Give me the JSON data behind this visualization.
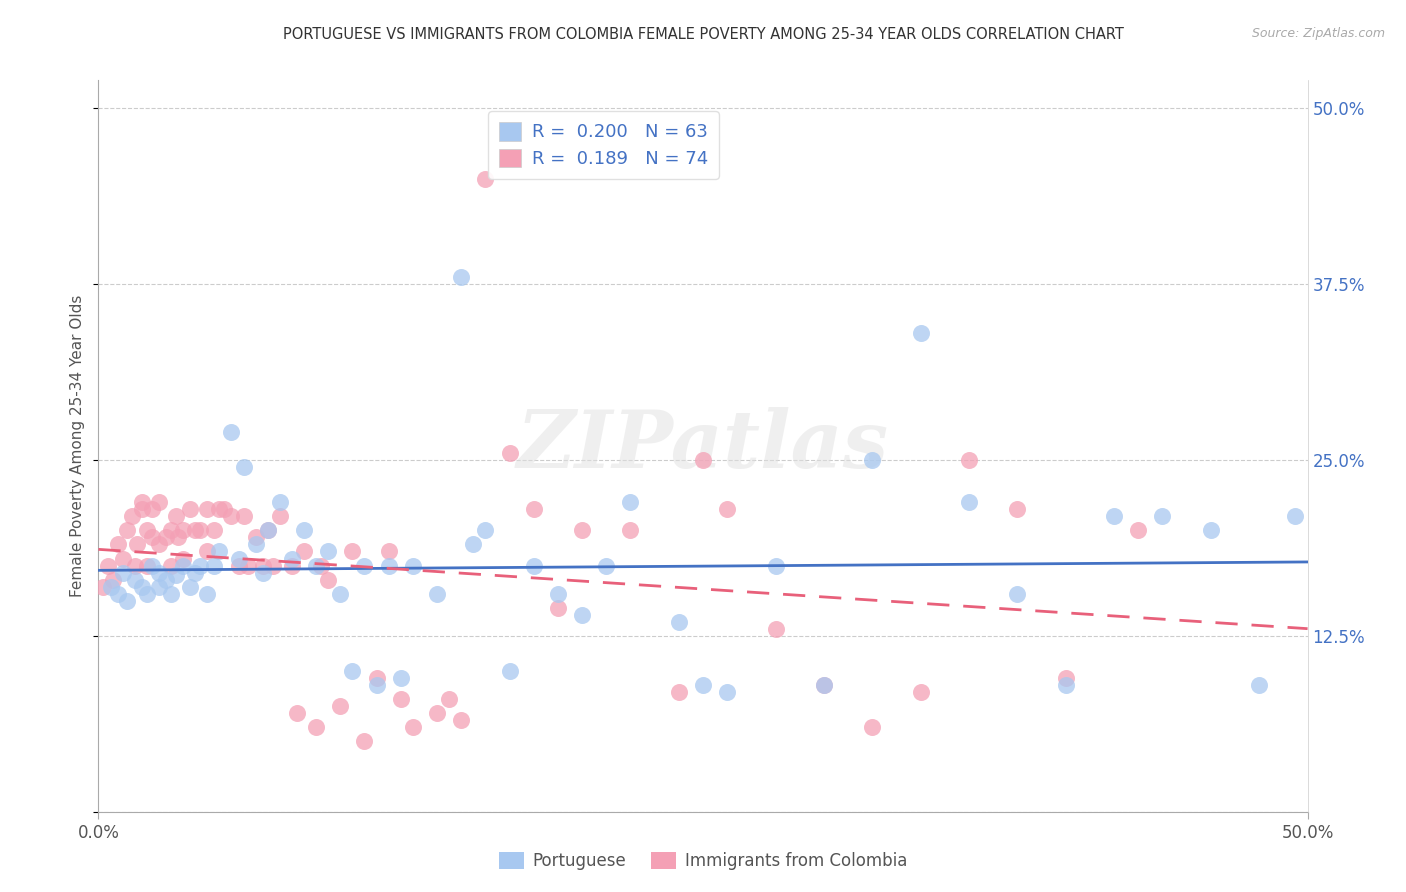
{
  "title": "PORTUGUESE VS IMMIGRANTS FROM COLOMBIA FEMALE POVERTY AMONG 25-34 YEAR OLDS CORRELATION CHART",
  "source": "Source: ZipAtlas.com",
  "ylabel": "Female Poverty Among 25-34 Year Olds",
  "xlim": [
    0.0,
    0.5
  ],
  "ylim": [
    0.0,
    0.52
  ],
  "yticks": [
    0.0,
    0.125,
    0.25,
    0.375,
    0.5
  ],
  "ytick_labels": [
    "",
    "12.5%",
    "25.0%",
    "37.5%",
    "50.0%"
  ],
  "blue_color": "#a8c8f0",
  "pink_color": "#f4a0b5",
  "blue_line_color": "#4472c4",
  "pink_line_color": "#e8607a",
  "R_blue": 0.2,
  "N_blue": 63,
  "R_pink": 0.189,
  "N_pink": 74,
  "legend_label_blue": "Portuguese",
  "legend_label_pink": "Immigrants from Colombia",
  "watermark": "ZIPatlas",
  "blue_x": [
    0.005,
    0.008,
    0.01,
    0.012,
    0.015,
    0.018,
    0.02,
    0.022,
    0.025,
    0.025,
    0.028,
    0.03,
    0.032,
    0.035,
    0.038,
    0.04,
    0.042,
    0.045,
    0.048,
    0.05,
    0.055,
    0.058,
    0.06,
    0.065,
    0.068,
    0.07,
    0.075,
    0.08,
    0.085,
    0.09,
    0.095,
    0.1,
    0.105,
    0.11,
    0.115,
    0.12,
    0.125,
    0.13,
    0.14,
    0.15,
    0.155,
    0.16,
    0.17,
    0.18,
    0.19,
    0.2,
    0.21,
    0.22,
    0.24,
    0.25,
    0.26,
    0.28,
    0.3,
    0.32,
    0.34,
    0.36,
    0.38,
    0.4,
    0.42,
    0.44,
    0.46,
    0.48,
    0.495
  ],
  "blue_y": [
    0.16,
    0.155,
    0.17,
    0.15,
    0.165,
    0.16,
    0.155,
    0.175,
    0.16,
    0.17,
    0.165,
    0.155,
    0.168,
    0.175,
    0.16,
    0.17,
    0.175,
    0.155,
    0.175,
    0.185,
    0.27,
    0.18,
    0.245,
    0.19,
    0.17,
    0.2,
    0.22,
    0.18,
    0.2,
    0.175,
    0.185,
    0.155,
    0.1,
    0.175,
    0.09,
    0.175,
    0.095,
    0.175,
    0.155,
    0.38,
    0.19,
    0.2,
    0.1,
    0.175,
    0.155,
    0.14,
    0.175,
    0.22,
    0.135,
    0.09,
    0.085,
    0.175,
    0.09,
    0.25,
    0.34,
    0.22,
    0.155,
    0.09,
    0.21,
    0.21,
    0.2,
    0.09,
    0.21
  ],
  "pink_x": [
    0.002,
    0.004,
    0.006,
    0.008,
    0.01,
    0.012,
    0.014,
    0.015,
    0.016,
    0.018,
    0.018,
    0.02,
    0.02,
    0.022,
    0.022,
    0.025,
    0.025,
    0.028,
    0.03,
    0.03,
    0.032,
    0.033,
    0.035,
    0.035,
    0.038,
    0.04,
    0.042,
    0.045,
    0.045,
    0.048,
    0.05,
    0.052,
    0.055,
    0.058,
    0.06,
    0.062,
    0.065,
    0.068,
    0.07,
    0.072,
    0.075,
    0.08,
    0.082,
    0.085,
    0.09,
    0.092,
    0.095,
    0.1,
    0.105,
    0.11,
    0.115,
    0.12,
    0.125,
    0.13,
    0.14,
    0.145,
    0.15,
    0.16,
    0.17,
    0.18,
    0.19,
    0.2,
    0.22,
    0.24,
    0.25,
    0.26,
    0.28,
    0.3,
    0.32,
    0.34,
    0.36,
    0.38,
    0.4,
    0.43
  ],
  "pink_y": [
    0.16,
    0.175,
    0.165,
    0.19,
    0.18,
    0.2,
    0.21,
    0.175,
    0.19,
    0.215,
    0.22,
    0.2,
    0.175,
    0.195,
    0.215,
    0.19,
    0.22,
    0.195,
    0.2,
    0.175,
    0.21,
    0.195,
    0.2,
    0.18,
    0.215,
    0.2,
    0.2,
    0.215,
    0.185,
    0.2,
    0.215,
    0.215,
    0.21,
    0.175,
    0.21,
    0.175,
    0.195,
    0.175,
    0.2,
    0.175,
    0.21,
    0.175,
    0.07,
    0.185,
    0.06,
    0.175,
    0.165,
    0.075,
    0.185,
    0.05,
    0.095,
    0.185,
    0.08,
    0.06,
    0.07,
    0.08,
    0.065,
    0.45,
    0.255,
    0.215,
    0.145,
    0.2,
    0.2,
    0.085,
    0.25,
    0.215,
    0.13,
    0.09,
    0.06,
    0.085,
    0.25,
    0.215,
    0.095,
    0.2
  ]
}
